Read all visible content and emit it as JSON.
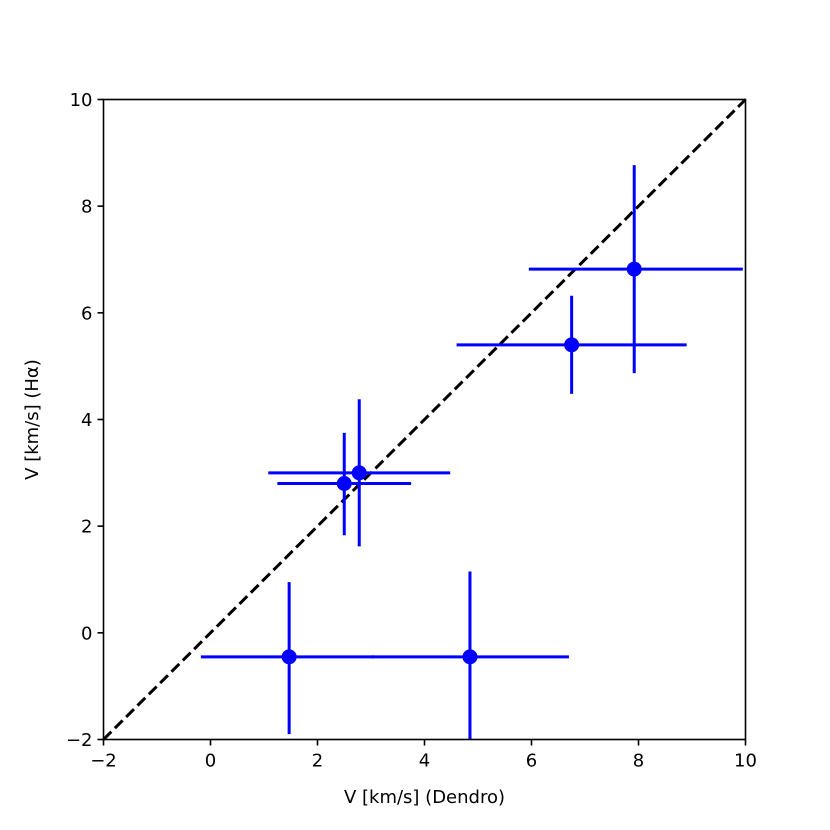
{
  "chart_data": {
    "type": "scatter",
    "title": "",
    "xlabel": "V [km/s] (Dendro)",
    "ylabel": "V [km/s] (Hα)",
    "xlim": [
      -2,
      10
    ],
    "ylim": [
      -2,
      10
    ],
    "xticks": [
      -2,
      0,
      2,
      4,
      6,
      8,
      10
    ],
    "yticks": [
      -2,
      0,
      2,
      4,
      6,
      8,
      10
    ],
    "xtick_labels": [
      "−2",
      "0",
      "2",
      "4",
      "6",
      "8",
      "10"
    ],
    "ytick_labels": [
      "−2",
      "0",
      "2",
      "4",
      "6",
      "8",
      "10"
    ],
    "grid": false,
    "marker_color": "#0000ff",
    "reference_line": {
      "style": "dashed",
      "color": "#000000",
      "from": [
        -2,
        -2
      ],
      "to": [
        10,
        10
      ]
    },
    "points": [
      {
        "x": 1.47,
        "y": -0.45,
        "xerr": [
          1.65,
          1.6
        ],
        "yerr": [
          1.45,
          1.4
        ]
      },
      {
        "x": 4.85,
        "y": -0.45,
        "xerr": [
          1.85,
          1.85
        ],
        "yerr": [
          1.55,
          1.6
        ]
      },
      {
        "x": 2.5,
        "y": 2.8,
        "xerr": [
          1.25,
          1.25
        ],
        "yerr": [
          0.97,
          0.95
        ]
      },
      {
        "x": 2.78,
        "y": 3.0,
        "xerr": [
          1.7,
          1.7
        ],
        "yerr": [
          1.38,
          1.38
        ]
      },
      {
        "x": 6.75,
        "y": 5.4,
        "xerr": [
          2.15,
          2.15
        ],
        "yerr": [
          0.92,
          0.92
        ]
      },
      {
        "x": 7.92,
        "y": 6.82,
        "xerr": [
          1.97,
          2.03
        ],
        "yerr": [
          1.95,
          1.95
        ]
      }
    ]
  }
}
